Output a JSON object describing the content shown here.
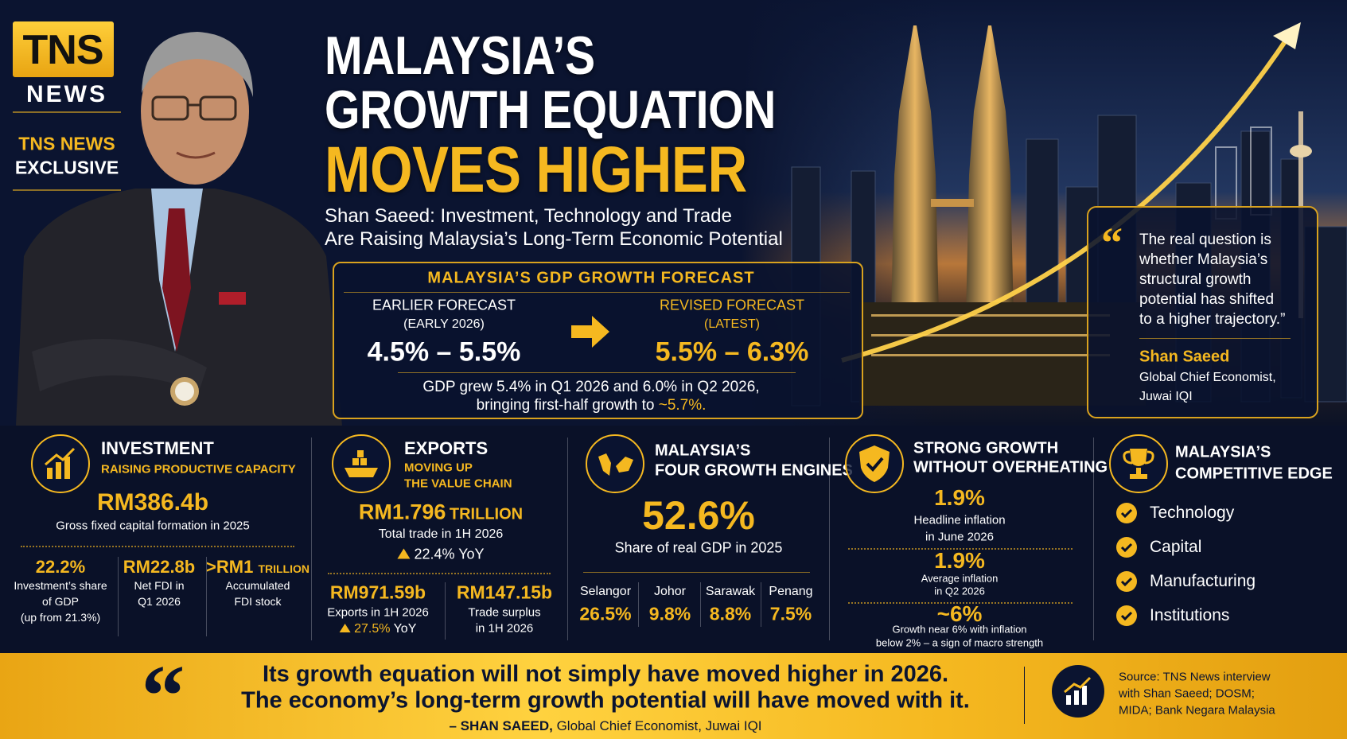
{
  "brand": {
    "logo": "TNS",
    "logo_sub": "NEWS",
    "tag_line1": "TNS NEWS",
    "tag_line2": "EXCLUSIVE"
  },
  "header": {
    "title_line1": "MALAYSIA’S",
    "title_line2": "GROWTH EQUATION",
    "title_line3": "MOVES HIGHER",
    "subtitle_line1": "Shan Saeed: Investment, Technology and Trade",
    "subtitle_line2": "Are Raising Malaysia’s Long-Term Economic Potential"
  },
  "forecast": {
    "title": "MALAYSIA’S GDP GROWTH FORECAST",
    "earlier": {
      "label": "EARLIER FORECAST",
      "period": "(EARLY 2026)",
      "range": "4.5% – 5.5%"
    },
    "revised": {
      "label": "REVISED FORECAST",
      "period": "(LATEST)",
      "range": "5.5% – 6.3%"
    },
    "note_line1": "GDP grew 5.4% in Q1 2026 and 6.0% in Q2 2026,",
    "note_line2": "bringing first-half growth to",
    "note_highlight": "~5.7%."
  },
  "quote": {
    "lines": [
      "The real question is",
      "whether Malaysia’s",
      "structural growth",
      "potential has shifted",
      "to a higher trajectory.”"
    ],
    "author": "Shan Saeed",
    "role_line1": "Global Chief Economist,",
    "role_line2": "Juwai IQI"
  },
  "panels": {
    "investment": {
      "title": "INVESTMENT",
      "subtitle": "RAISING PRODUCTIVE CAPACITY",
      "headline": "RM386.4b",
      "caption": "Gross fixed capital formation in 2025",
      "stats": [
        {
          "value": "22.2%",
          "label": [
            "Investment’s share",
            "of GDP",
            "(up from 21.3%)"
          ]
        },
        {
          "value": "RM22.8b",
          "label": [
            "Net FDI in",
            "Q1 2026"
          ]
        },
        {
          "value": ">RM1",
          "unit": "TRILLION",
          "label": [
            "Accumulated",
            "FDI stock"
          ]
        }
      ]
    },
    "exports": {
      "title": "EXPORTS",
      "subtitle": [
        "MOVING UP",
        "THE VALUE CHAIN"
      ],
      "headline": "RM1.796",
      "headline_unit": "TRILLION",
      "caption": "Total trade in 1H 2026",
      "change": "22.4%",
      "change_unit": "YoY",
      "stats": [
        {
          "value": "RM971.59b",
          "label": [
            "Exports in 1H 2026"
          ],
          "change": "27.5%",
          "change_unit": "YoY"
        },
        {
          "value": "RM147.15b",
          "label": [
            "Trade surplus",
            "in 1H 2026"
          ]
        }
      ]
    },
    "engines": {
      "title": [
        "MALAYSIA’S",
        "FOUR GROWTH ENGINES"
      ],
      "headline": "52.6%",
      "caption": "Share of real GDP in 2025",
      "states": [
        {
          "name": "Selangor",
          "value": "26.5%"
        },
        {
          "name": "Johor",
          "value": "9.8%"
        },
        {
          "name": "Sarawak",
          "value": "8.8%"
        },
        {
          "name": "Penang",
          "value": "7.5%"
        }
      ]
    },
    "growth": {
      "title": [
        "STRONG GROWTH",
        "WITHOUT OVERHEATING"
      ],
      "stats": [
        {
          "value": "1.9%",
          "label": [
            "Headline inflation",
            "in June 2026"
          ]
        },
        {
          "value": "1.9%",
          "label": [
            "Average inflation",
            "in Q2 2026"
          ]
        },
        {
          "value": "~6%",
          "label": [
            "Growth near 6% with inflation",
            "below 2% – a sign of macro strength"
          ]
        }
      ]
    },
    "edge": {
      "title": [
        "MALAYSIA’S",
        "COMPETITIVE EDGE"
      ],
      "items": [
        "Technology",
        "Capital",
        "Manufacturing",
        "Institutions"
      ]
    }
  },
  "footer": {
    "quote_line1": "Its growth equation will not simply have moved higher in 2026.",
    "quote_line2": "The economy’s long-term growth potential will have moved with it.",
    "attribution_name": "– SHAN SAEED,",
    "attribution_role": "Global Chief Economist, Juwai IQI",
    "source": [
      "Source: TNS News interview",
      "with Shan Saeed; DOSM;",
      "MIDA; Bank Negara Malaysia"
    ]
  }
}
